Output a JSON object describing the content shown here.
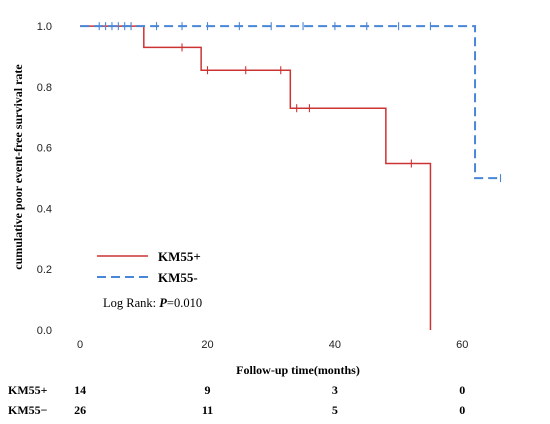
{
  "chart_data": {
    "type": "line",
    "subtype": "kaplan-meier",
    "xlabel": "Follow-up time(months)",
    "ylabel": "cumulative poor event-free survival rate",
    "xlim": [
      -3,
      70
    ],
    "ylim": [
      0,
      1.04
    ],
    "x_ticks": [
      0,
      20,
      40,
      60
    ],
    "y_ticks": [
      0.0,
      0.2,
      0.4,
      0.6,
      0.8,
      1.0
    ],
    "x_tick_labels": [
      "0",
      "20",
      "40",
      "60"
    ],
    "y_tick_labels": [
      "0.0",
      "0.2",
      "0.4",
      "0.6",
      "0.8",
      "1.0"
    ],
    "grid": false,
    "legend_position": "lower-left",
    "series": [
      {
        "name": "KM55+",
        "color": "#cc3333",
        "style": "solid",
        "steps": [
          [
            0,
            1.0
          ],
          [
            10,
            0.93
          ],
          [
            19,
            0.855
          ],
          [
            33,
            0.73
          ],
          [
            48,
            0.548
          ],
          [
            55,
            0.0
          ]
        ],
        "end_x": 55,
        "censored": [
          [
            16,
            0.93
          ],
          [
            20,
            0.855
          ],
          [
            26,
            0.855
          ],
          [
            31.5,
            0.855
          ],
          [
            34,
            0.73
          ],
          [
            36,
            0.73
          ],
          [
            52,
            0.548
          ]
        ]
      },
      {
        "name": "KM55-",
        "color": "#4a86d8",
        "style": "dashed",
        "steps": [
          [
            0,
            1.0
          ],
          [
            62,
            0.5
          ]
        ],
        "end_x": 66,
        "censored": [
          [
            3,
            1.0
          ],
          [
            4,
            1.0
          ],
          [
            5,
            1.0
          ],
          [
            6,
            1.0
          ],
          [
            7,
            1.0
          ],
          [
            8,
            1.0
          ],
          [
            12,
            1.0
          ],
          [
            16,
            1.0
          ],
          [
            20,
            1.0
          ],
          [
            25,
            1.0
          ],
          [
            30,
            1.0
          ],
          [
            35,
            1.0
          ],
          [
            40,
            1.0
          ],
          [
            45,
            1.0
          ],
          [
            50,
            1.0
          ],
          [
            55,
            1.0
          ],
          [
            66,
            0.5
          ]
        ]
      }
    ],
    "annotations": {
      "log_rank_prefix": "Log Rank: ",
      "log_rank_p": "P",
      "log_rank_value": "=0.010"
    },
    "risk_table": {
      "times": [
        0,
        20,
        40,
        60
      ],
      "rows": [
        {
          "label": "KM55+",
          "counts": [
            "14",
            "9",
            "3",
            "0"
          ]
        },
        {
          "label": "KM55−",
          "counts": [
            "26",
            "11",
            "5",
            "0"
          ]
        }
      ]
    }
  }
}
